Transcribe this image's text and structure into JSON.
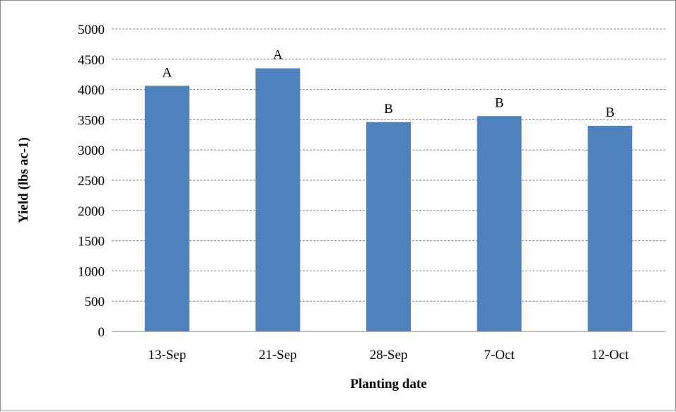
{
  "chart_data": {
    "type": "bar",
    "title": "",
    "xlabel": "Planting date",
    "ylabel": "Yield (lbs ac-1)",
    "categories": [
      "13-Sep",
      "21-Sep",
      "28-Sep",
      "7-Oct",
      "12-Oct"
    ],
    "values": [
      4060,
      4350,
      3460,
      3560,
      3400
    ],
    "letters": [
      "A",
      "A",
      "B",
      "B",
      "B"
    ],
    "ylim": [
      0,
      5000
    ],
    "yticks": [
      0,
      500,
      1000,
      1500,
      2000,
      2500,
      3000,
      3500,
      4000,
      4500,
      5000
    ],
    "grid": true,
    "bar_color": "#4f81bd",
    "legend": "none"
  }
}
